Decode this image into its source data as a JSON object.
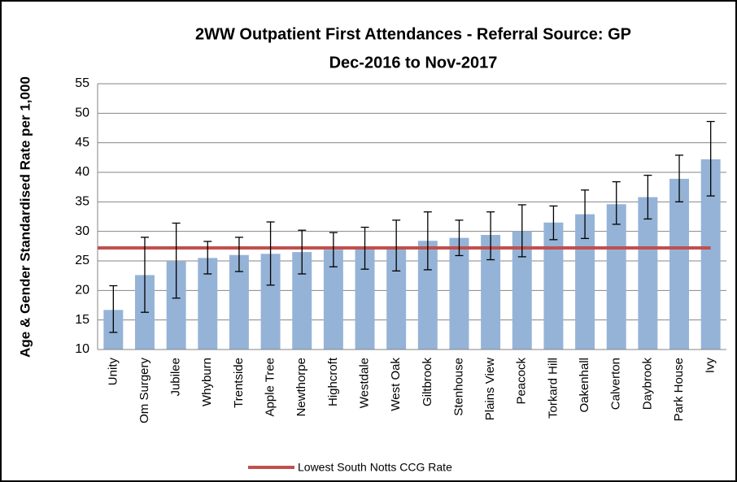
{
  "chart_data": {
    "type": "bar",
    "title": "2WW Outpatient First Attendances - Referral Source: GP",
    "subtitle": "Dec-2016 to Nov-2017",
    "y_label": "Age & Gender Standardised  Rate per 1,000",
    "categories": [
      "Unity",
      "Om Surgery",
      "Jubilee",
      "Whyburn",
      "Trentside",
      "Apple Tree",
      "Newthorpe",
      "Highcroft",
      "Westdale",
      "West Oak",
      "Giltbrook",
      "Stenhouse",
      "Plains View",
      "Peacock",
      "Torkard Hill",
      "Oakenhall",
      "Calverton",
      "Daybrook",
      "Park House",
      "Ivy"
    ],
    "values": [
      16.7,
      22.6,
      24.9,
      25.5,
      26.0,
      26.2,
      26.5,
      26.9,
      27.0,
      27.2,
      28.4,
      28.9,
      29.4,
      30.0,
      31.5,
      32.9,
      34.6,
      35.8,
      38.9,
      42.2
    ],
    "ci_lower": [
      12.9,
      16.3,
      18.7,
      22.8,
      23.2,
      20.9,
      22.8,
      24.0,
      23.6,
      23.3,
      23.5,
      25.9,
      25.2,
      25.7,
      28.6,
      28.8,
      31.2,
      32.1,
      35.0,
      36.0
    ],
    "ci_upper": [
      20.8,
      29.0,
      31.4,
      28.3,
      29.0,
      31.6,
      30.2,
      29.8,
      30.7,
      31.9,
      33.3,
      31.9,
      33.3,
      34.5,
      34.3,
      37.0,
      38.4,
      39.5,
      42.9,
      48.6
    ],
    "color": "#95b3d7",
    "reference_line": {
      "name": "Lowest South Notts CCG Rate",
      "value": 27.2,
      "color": "#c0504d"
    },
    "ylim": [
      10,
      55
    ],
    "yticks": [
      10,
      15,
      20,
      25,
      30,
      35,
      40,
      45,
      50,
      55
    ],
    "grid": true
  }
}
